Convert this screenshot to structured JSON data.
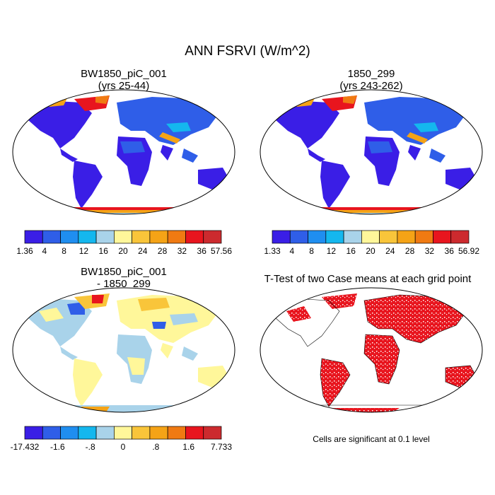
{
  "figure": {
    "title": "ANN FSRVI (W/m^2)"
  },
  "panels": [
    {
      "title_line1": "BW1850_piC_001",
      "title_line2": "(yrs 25-44)",
      "colorbar": {
        "labels": [
          "1.36",
          "4",
          "8",
          "12",
          "16",
          "20",
          "24",
          "28",
          "32",
          "36",
          "57.56"
        ],
        "colors": [
          "#3a1ee6",
          "#2f5ee8",
          "#1f8ef0",
          "#14b7ee",
          "#a9d3ea",
          "#fff79a",
          "#f9c53a",
          "#f5a316",
          "#f07a12",
          "#e8151e",
          "#cc2a2e"
        ]
      }
    },
    {
      "title_line1": "1850_299",
      "title_line2": "(yrs 243-262)",
      "colorbar": {
        "labels": [
          "1.33",
          "4",
          "8",
          "12",
          "16",
          "20",
          "24",
          "28",
          "32",
          "36",
          "56.92"
        ],
        "colors": [
          "#3a1ee6",
          "#2f5ee8",
          "#1f8ef0",
          "#14b7ee",
          "#a9d3ea",
          "#fff79a",
          "#f9c53a",
          "#f5a316",
          "#f07a12",
          "#e8151e",
          "#cc2a2e"
        ]
      }
    },
    {
      "title_line1": "BW1850_piC_001",
      "title_line2": "- 1850_299",
      "colorbar": {
        "labels": [
          "-17.432",
          "-1.6",
          "-.8",
          "0",
          ".8",
          "1.6",
          "7.733"
        ],
        "colors": [
          "#3a1ee6",
          "#2f5ee8",
          "#1f8ef0",
          "#14b7ee",
          "#a9d3ea",
          "#fff79a",
          "#f9c53a",
          "#f5a316",
          "#f07a12",
          "#e8151e",
          "#cc2a2e"
        ]
      }
    },
    {
      "title_line1": "T-Test of two Case means at each grid point",
      "note": "Cells are significant at 0.1 level",
      "significance_color": "#e8151e"
    }
  ]
}
